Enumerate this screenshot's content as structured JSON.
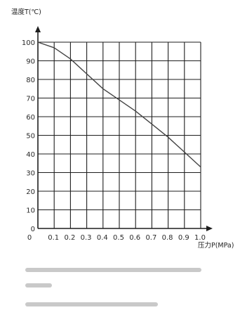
{
  "chart_data": {
    "type": "line",
    "title": "",
    "xlabel": "压力P(MPa)",
    "ylabel": "温度T(℃)",
    "xlim": [
      0,
      1.0
    ],
    "ylim": [
      0,
      100
    ],
    "x_ticks": [
      "0.1",
      "0.2",
      "0.3",
      "0.4",
      "0.5",
      "0.6",
      "0.7",
      "0.8",
      "0.9",
      "1.0"
    ],
    "y_ticks": [
      "0",
      "10",
      "20",
      "30",
      "40",
      "50",
      "60",
      "70",
      "80",
      "90",
      "100"
    ],
    "grid": true,
    "series": [
      {
        "x": [
          0.0,
          0.1,
          0.2,
          0.3,
          0.4,
          0.5,
          0.6,
          0.7,
          0.8,
          0.9,
          1.0
        ],
        "y": [
          100,
          97,
          91,
          83,
          75,
          69,
          63,
          56,
          49,
          41,
          33
        ],
        "color": "#444444"
      }
    ]
  },
  "colors": {
    "grid": "#1e1e1e",
    "axis": "#1e1e1e",
    "line": "#444444",
    "caption_placeholder": "#c9c9c9"
  }
}
